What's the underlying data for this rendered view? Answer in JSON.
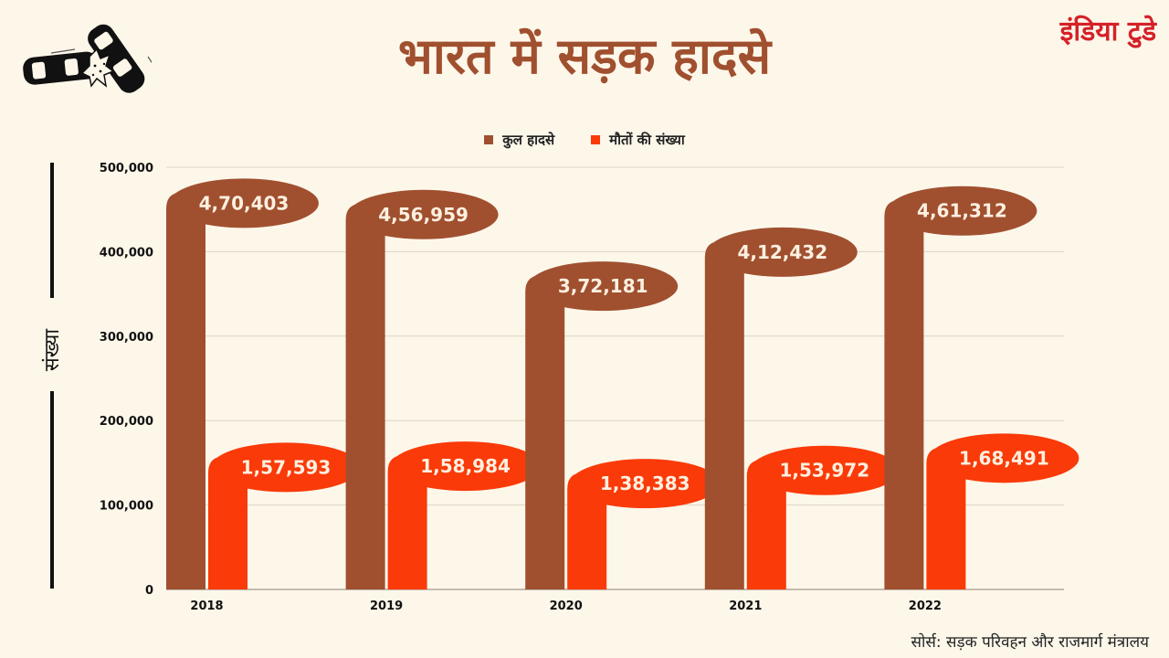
{
  "title": "भारत में सड़क हादसे",
  "logo": "इंडिया टुडे",
  "source": "सोर्स: सड़क परिवहन और राजमार्ग मंत्रालय",
  "icons": {
    "crash": "car-crash-icon"
  },
  "colors": {
    "total": "#a0502f",
    "deaths": "#fa3a08",
    "grid": "#dcd5c4",
    "background": "#fdf7ea",
    "logo": "#d52128"
  },
  "chart_data": {
    "type": "bar",
    "title": "भारत में सड़क हादसे",
    "xlabel": "",
    "ylabel": "संख्या",
    "ylim": [
      0,
      500000
    ],
    "yticks": [
      0,
      100000,
      200000,
      300000,
      400000,
      500000
    ],
    "ytick_labels": [
      "0",
      "100,000",
      "200,000",
      "300,000",
      "400,000",
      "500,000"
    ],
    "grid": true,
    "legend_position": "top-center",
    "categories": [
      "2018",
      "2019",
      "2020",
      "2021",
      "2022"
    ],
    "series": [
      {
        "name": "कुल हादसे",
        "values": [
          470403,
          456959,
          372181,
          412432,
          461312
        ],
        "labels": [
          "4,70,403",
          "4,56,959",
          "3,72,181",
          "4,12,432",
          "4,61,312"
        ]
      },
      {
        "name": "मौतों की संख्या",
        "values": [
          157593,
          158984,
          138383,
          153972,
          168491
        ],
        "labels": [
          "1,57,593",
          "1,58,984",
          "1,38,383",
          "1,53,972",
          "1,68,491"
        ]
      }
    ]
  }
}
